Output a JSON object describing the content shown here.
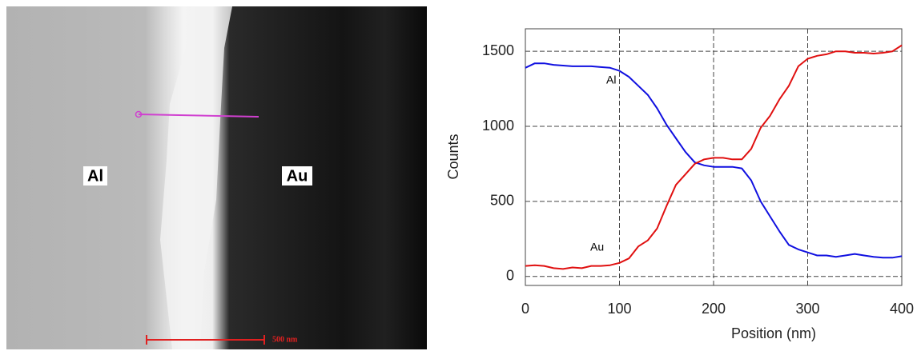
{
  "image": {
    "left_label": "Al",
    "right_label": "Au",
    "scale_bar": "500 nm"
  },
  "chart_data": {
    "type": "line",
    "xlabel": "Position (nm)",
    "ylabel": "Counts",
    "x": [
      0,
      10,
      20,
      30,
      40,
      50,
      60,
      70,
      80,
      90,
      100,
      110,
      120,
      130,
      140,
      150,
      160,
      170,
      180,
      190,
      200,
      210,
      220,
      230,
      240,
      250,
      260,
      270,
      280,
      290,
      300,
      310,
      320,
      330,
      340,
      350,
      360,
      370,
      380,
      390,
      400
    ],
    "series": [
      {
        "name": "Al",
        "color": "#1010e0",
        "values": [
          1390,
          1420,
          1420,
          1410,
          1405,
          1400,
          1400,
          1400,
          1395,
          1390,
          1370,
          1330,
          1270,
          1210,
          1120,
          1010,
          920,
          830,
          760,
          740,
          730,
          730,
          730,
          720,
          640,
          500,
          400,
          300,
          210,
          180,
          160,
          140,
          140,
          130,
          140,
          150,
          140,
          130,
          125,
          125,
          135
        ]
      },
      {
        "name": "Au",
        "color": "#e01010",
        "values": [
          70,
          75,
          70,
          55,
          50,
          60,
          55,
          70,
          70,
          75,
          90,
          120,
          200,
          240,
          320,
          470,
          610,
          680,
          750,
          780,
          790,
          790,
          780,
          780,
          850,
          990,
          1070,
          1180,
          1270,
          1400,
          1450,
          1470,
          1480,
          1500,
          1500,
          1490,
          1490,
          1485,
          1490,
          1500,
          1540
        ]
      }
    ],
    "xlim": [
      0,
      400
    ],
    "xticks": [
      0,
      100,
      200,
      300,
      400
    ],
    "ylim": [
      -60,
      1650
    ],
    "yticks": [
      0,
      500,
      1000,
      1500
    ],
    "grid": true
  }
}
